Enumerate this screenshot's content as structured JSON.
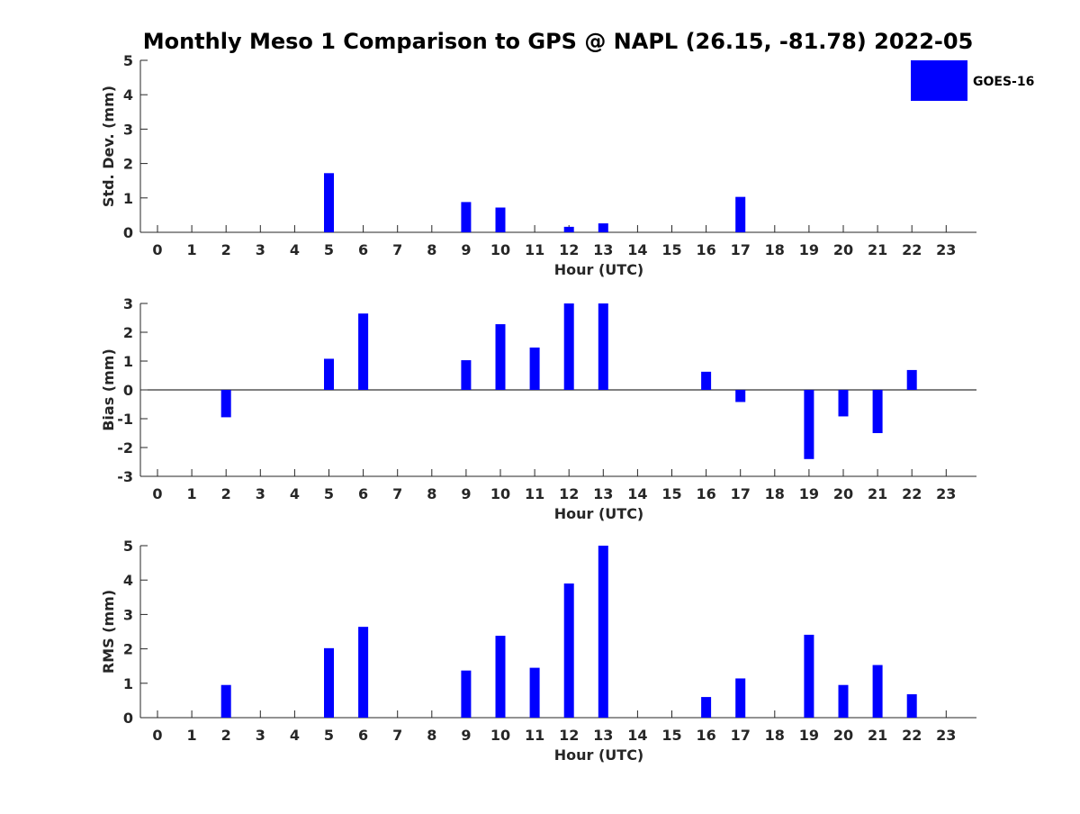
{
  "title": "Monthly Meso 1 Comparison to GPS @ NAPL (26.15, -81.78) 2022-05",
  "legend": {
    "label": "GOES-16",
    "color": "#0000ff",
    "placement": "top-right"
  },
  "chart_data": [
    {
      "type": "bar",
      "ylabel": "Std. Dev. (mm)",
      "xlabel": "Hour (UTC)",
      "ylim": [
        0,
        5
      ],
      "yticks": [
        "0",
        "1",
        "2",
        "3",
        "4",
        "5"
      ],
      "categories": [
        "0",
        "1",
        "2",
        "3",
        "4",
        "5",
        "6",
        "7",
        "8",
        "9",
        "10",
        "11",
        "12",
        "13",
        "14",
        "15",
        "16",
        "17",
        "18",
        "19",
        "20",
        "21",
        "22",
        "23"
      ],
      "series": [
        {
          "name": "GOES-16",
          "values": [
            0,
            0,
            0,
            0,
            0,
            1.72,
            0,
            0,
            0,
            0.88,
            0.72,
            0,
            0.16,
            0.26,
            0,
            0,
            0,
            1.03,
            0,
            0,
            0,
            0,
            0,
            0
          ]
        }
      ]
    },
    {
      "type": "bar",
      "ylabel": "Bias (mm)",
      "xlabel": "Hour (UTC)",
      "ylim": [
        -3,
        3
      ],
      "yticks": [
        "-3",
        "-2",
        "-1",
        "0",
        "1",
        "2",
        "3"
      ],
      "categories": [
        "0",
        "1",
        "2",
        "3",
        "4",
        "5",
        "6",
        "7",
        "8",
        "9",
        "10",
        "11",
        "12",
        "13",
        "14",
        "15",
        "16",
        "17",
        "18",
        "19",
        "20",
        "21",
        "22",
        "23"
      ],
      "series": [
        {
          "name": "GOES-16",
          "values": [
            0,
            0,
            -0.95,
            0,
            0,
            1.08,
            2.65,
            0,
            0,
            1.03,
            2.28,
            1.47,
            3.0,
            3.0,
            0,
            0,
            0.63,
            -0.42,
            0,
            -2.4,
            -0.92,
            -1.5,
            0.69,
            0
          ]
        }
      ]
    },
    {
      "type": "bar",
      "ylabel": "RMS (mm)",
      "xlabel": "Hour (UTC)",
      "ylim": [
        0,
        5
      ],
      "yticks": [
        "0",
        "1",
        "2",
        "3",
        "4",
        "5"
      ],
      "categories": [
        "0",
        "1",
        "2",
        "3",
        "4",
        "5",
        "6",
        "7",
        "8",
        "9",
        "10",
        "11",
        "12",
        "13",
        "14",
        "15",
        "16",
        "17",
        "18",
        "19",
        "20",
        "21",
        "22",
        "23"
      ],
      "series": [
        {
          "name": "GOES-16",
          "values": [
            0,
            0,
            0.95,
            0,
            0,
            2.02,
            2.64,
            0,
            0,
            1.37,
            2.38,
            1.45,
            3.9,
            5.0,
            0,
            0,
            0.6,
            1.14,
            0,
            2.41,
            0.95,
            1.53,
            0.68,
            0
          ]
        }
      ]
    }
  ]
}
